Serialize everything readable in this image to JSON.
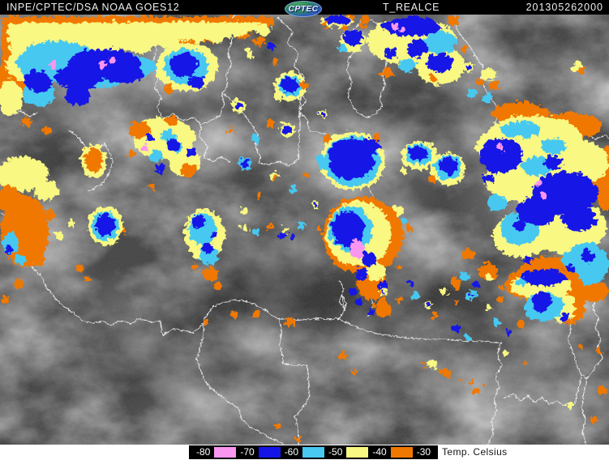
{
  "header": {
    "source_label": "INPE/CPTEC/DSA NOAA GOES12",
    "logo_text": "CPTEC",
    "product_title": "T_REALCE",
    "timestamp": "201305262000"
  },
  "legend": {
    "unit_label": "Temp. Celsius",
    "entries": [
      {
        "value": "-80",
        "color": "#fa96f0"
      },
      {
        "value": "-70",
        "color": "#1414e6"
      },
      {
        "value": "-60",
        "color": "#46c8f0"
      },
      {
        "value": "-50",
        "color": "#f8f882"
      },
      {
        "value": "-40",
        "color": "#f07800"
      },
      {
        "value": "-30",
        "color": null
      }
    ]
  },
  "palette": {
    "enhancement_pink": "#fa96f0",
    "enhancement_blue": "#1414e6",
    "enhancement_cyan": "#46c8f0",
    "enhancement_yellow": "#f8f882",
    "enhancement_orange": "#f07800",
    "border_line": "#f2f2f2",
    "header_bg": "#000000",
    "header_text": "#efefef"
  }
}
